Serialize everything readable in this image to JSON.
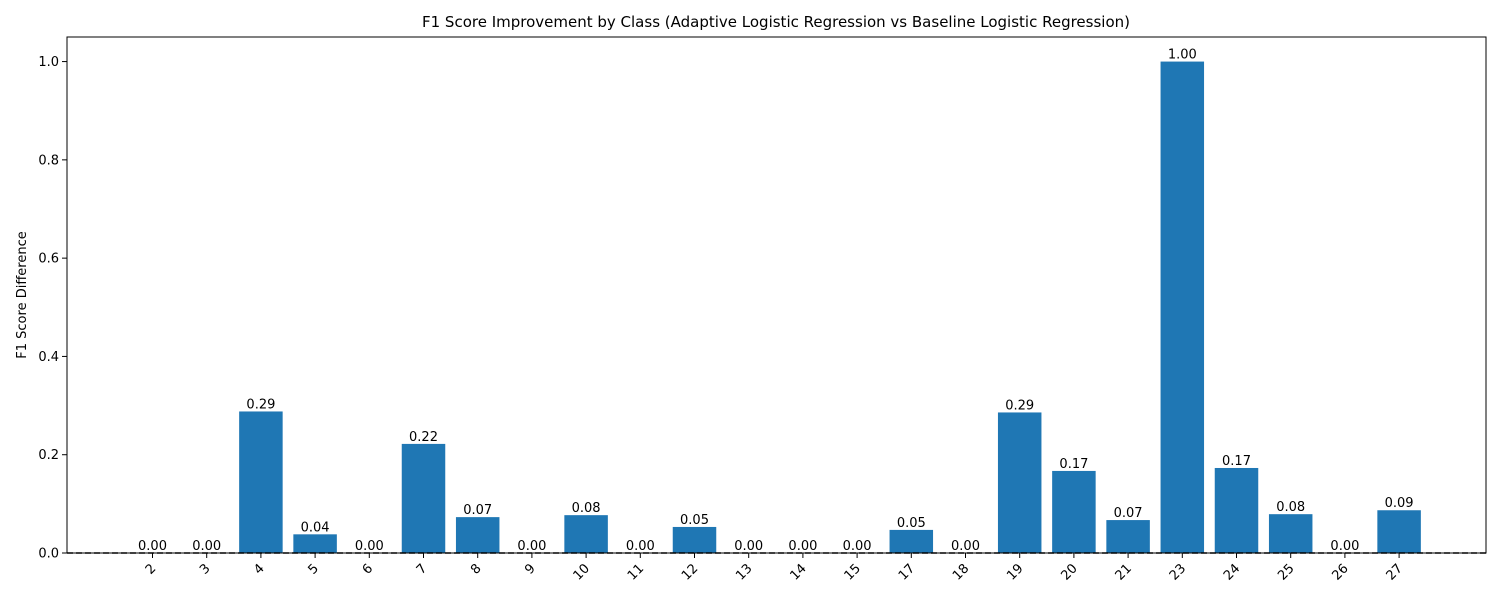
{
  "chart_data": {
    "type": "bar",
    "title": "F1 Score Improvement by Class (Adaptive Logistic Regression vs Baseline Logistic Regression)",
    "xlabel": "",
    "ylabel": "F1 Score Difference",
    "ylim": [
      0,
      1.05
    ],
    "yticks": [
      0.0,
      0.2,
      0.4,
      0.6,
      0.8,
      1.0
    ],
    "ytick_labels": [
      "0.0",
      "0.2",
      "0.4",
      "0.6",
      "0.8",
      "1.0"
    ],
    "categories": [
      "2",
      "3",
      "4",
      "5",
      "6",
      "7",
      "8",
      "9",
      "10",
      "11",
      "12",
      "13",
      "14",
      "15",
      "17",
      "18",
      "19",
      "20",
      "21",
      "23",
      "24",
      "25",
      "26",
      "27"
    ],
    "values": [
      0.0,
      0.0,
      0.288,
      0.038,
      0.0,
      0.222,
      0.073,
      0.0,
      0.077,
      0.0,
      0.053,
      0.0,
      0.0,
      0.0,
      0.047,
      0.0,
      0.286,
      0.167,
      0.067,
      1.0,
      0.173,
      0.079,
      0.0,
      0.087
    ],
    "value_labels": [
      "0.00",
      "0.00",
      "0.29",
      "0.04",
      "0.00",
      "0.22",
      "0.07",
      "0.00",
      "0.08",
      "0.00",
      "0.05",
      "0.00",
      "0.00",
      "0.00",
      "0.05",
      "0.00",
      "0.29",
      "0.17",
      "0.07",
      "1.00",
      "0.17",
      "0.08",
      "0.00",
      "0.09"
    ],
    "bar_color": "#1f77b4",
    "baseline": 0,
    "baseline_style": "dashed",
    "grid": false
  }
}
